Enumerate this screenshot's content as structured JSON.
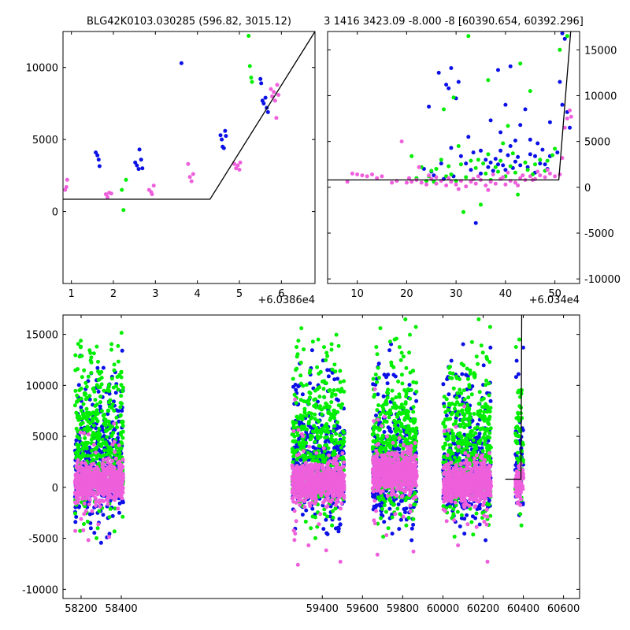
{
  "figure": {
    "title_left": "BLG42K0103.030285 (596.82, 3015.12)",
    "title_right": "3 1416 3423.09 -8.000 -8 [60390.654, 60392.296]",
    "offset_left": "+6.0386e4",
    "offset_right": "+6.034e4"
  },
  "chart_data": [
    {
      "id": "top-left",
      "type": "scatter",
      "title": "BLG42K0103.030285 (596.82, 3015.12)",
      "xlim": [
        0.8,
        6.8
      ],
      "ylim": [
        -5000,
        12500
      ],
      "x_offset_label": "+6.0386e4",
      "x_ticks": [
        1,
        2,
        3,
        4,
        5,
        6
      ],
      "y_ticks": [
        0,
        5000,
        10000
      ],
      "y_axis_side": "left",
      "series": [
        {
          "color": "#0a10e6",
          "points": [
            [
              1.58,
              4100
            ],
            [
              1.62,
              3900
            ],
            [
              1.65,
              3600
            ],
            [
              1.67,
              3150
            ],
            [
              2.52,
              3400
            ],
            [
              2.56,
              3200
            ],
            [
              2.6,
              2950
            ],
            [
              2.62,
              4300
            ],
            [
              2.66,
              3600
            ],
            [
              2.69,
              3000
            ],
            [
              3.62,
              10300
            ],
            [
              4.55,
              5300
            ],
            [
              4.58,
              5000
            ],
            [
              4.6,
              4500
            ],
            [
              4.63,
              4400
            ],
            [
              4.66,
              5600
            ],
            [
              4.68,
              5250
            ],
            [
              5.5,
              9200
            ],
            [
              5.52,
              8900
            ],
            [
              5.55,
              7700
            ],
            [
              5.58,
              7500
            ],
            [
              5.62,
              7900
            ],
            [
              5.65,
              7200
            ],
            [
              5.68,
              6900
            ]
          ]
        },
        {
          "color": "#00ee00",
          "points": [
            [
              2.2,
              1500
            ],
            [
              2.24,
              100
            ],
            [
              2.3,
              2200
            ],
            [
              5.22,
              12200
            ],
            [
              5.25,
              10100
            ],
            [
              5.28,
              9300
            ],
            [
              5.3,
              9000
            ]
          ]
        },
        {
          "color": "#ee5fdc",
          "points": [
            [
              0.85,
              1500
            ],
            [
              0.88,
              1700
            ],
            [
              0.9,
              2200
            ],
            [
              1.82,
              1200
            ],
            [
              1.86,
              1000
            ],
            [
              1.9,
              1300
            ],
            [
              1.95,
              1250
            ],
            [
              2.85,
              1500
            ],
            [
              2.9,
              1350
            ],
            [
              2.92,
              1200
            ],
            [
              2.96,
              1800
            ],
            [
              3.78,
              3300
            ],
            [
              3.82,
              2400
            ],
            [
              3.86,
              2100
            ],
            [
              3.9,
              2600
            ],
            [
              4.88,
              3300
            ],
            [
              4.92,
              3000
            ],
            [
              4.96,
              3200
            ],
            [
              5.0,
              2900
            ],
            [
              5.02,
              3400
            ],
            [
              5.75,
              8500
            ],
            [
              5.78,
              8000
            ],
            [
              5.82,
              8300
            ],
            [
              5.85,
              7700
            ],
            [
              5.88,
              6500
            ],
            [
              5.9,
              8800
            ],
            [
              5.93,
              8100
            ]
          ]
        }
      ],
      "model_line": [
        [
          0.8,
          850
        ],
        [
          4.3,
          850
        ],
        [
          6.8,
          12500
        ]
      ]
    },
    {
      "id": "top-right",
      "type": "scatter",
      "title": "3 1416 3423.09 -8.000 -8 [60390.654, 60392.296]",
      "xlim": [
        4,
        55
      ],
      "ylim": [
        -10500,
        17000
      ],
      "x_offset_label": "+6.034e4",
      "x_ticks": [
        10,
        20,
        30,
        40,
        50
      ],
      "y_ticks": [
        -10000,
        -5000,
        0,
        5000,
        10000,
        15000
      ],
      "y_axis_side": "right",
      "series": [
        {
          "color": "#0a10e6",
          "points": [
            [
              23.5,
              2000
            ],
            [
              24.5,
              8800
            ],
            [
              25.5,
              1300
            ],
            [
              26.5,
              12500
            ],
            [
              27,
              2600
            ],
            [
              28,
              11200
            ],
            [
              28.5,
              10800
            ],
            [
              29,
              13000
            ],
            [
              29.5,
              1200
            ],
            [
              30.5,
              11500
            ],
            [
              31,
              3400
            ],
            [
              32,
              2600
            ],
            [
              33,
              1900
            ],
            [
              34,
              -3900
            ],
            [
              35,
              4000
            ],
            [
              36,
              3000
            ],
            [
              36.5,
              2200
            ],
            [
              37,
              2700
            ],
            [
              37.5,
              1800
            ],
            [
              38,
              3100
            ],
            [
              38.5,
              2500
            ],
            [
              39,
              4000
            ],
            [
              39.5,
              2400
            ],
            [
              40,
              1900
            ],
            [
              40.5,
              3500
            ],
            [
              41,
              4500
            ],
            [
              41.5,
              2100
            ],
            [
              42,
              2800
            ],
            [
              42.5,
              3300
            ],
            [
              43,
              2400
            ],
            [
              44,
              8500
            ],
            [
              45,
              5200
            ],
            [
              46,
              3400
            ],
            [
              47,
              2600
            ],
            [
              47.5,
              4100
            ],
            [
              48,
              2500
            ],
            [
              49,
              7100
            ],
            [
              51,
              11500
            ],
            [
              51.5,
              9000
            ],
            [
              52,
              16200
            ],
            [
              52.5,
              8200
            ],
            [
              53,
              6500
            ],
            [
              27.5,
              900
            ],
            [
              25,
              1700
            ],
            [
              29,
              4300
            ],
            [
              32.5,
              5500
            ],
            [
              37,
              7300
            ],
            [
              38.5,
              12800
            ],
            [
              40,
              9000
            ],
            [
              41,
              13200
            ],
            [
              43,
              6800
            ],
            [
              45,
              3600
            ],
            [
              46.5,
              4800
            ],
            [
              48.5,
              2000
            ],
            [
              50.5,
              3800
            ],
            [
              30,
              9700
            ],
            [
              33.5,
              3800
            ],
            [
              35,
              1500
            ],
            [
              39,
              6000
            ],
            [
              42,
              5100
            ],
            [
              44.5,
              2200
            ],
            [
              46,
              1600
            ],
            [
              49,
              3400
            ],
            [
              51.5,
              16800
            ]
          ]
        },
        {
          "color": "#00ee00",
          "points": [
            [
              21,
              3400
            ],
            [
              22,
              1000
            ],
            [
              23,
              2200
            ],
            [
              24.5,
              1200
            ],
            [
              25,
              1800
            ],
            [
              25.5,
              600
            ],
            [
              26,
              2000
            ],
            [
              27,
              3000
            ],
            [
              27.5,
              8500
            ],
            [
              28,
              1200
            ],
            [
              28.5,
              2300
            ],
            [
              29,
              1400
            ],
            [
              29.5,
              9800
            ],
            [
              30,
              700
            ],
            [
              31,
              2500
            ],
            [
              31.5,
              -2700
            ],
            [
              32,
              1100
            ],
            [
              32.5,
              16500
            ],
            [
              33,
              2900
            ],
            [
              34,
              2100
            ],
            [
              35,
              -1900
            ],
            [
              35.5,
              2600
            ],
            [
              36,
              1500
            ],
            [
              36.5,
              3600
            ],
            [
              37,
              800
            ],
            [
              38,
              2200
            ],
            [
              38.5,
              1700
            ],
            [
              39,
              2900
            ],
            [
              40,
              1200
            ],
            [
              40.5,
              6700
            ],
            [
              41,
              2300
            ],
            [
              42,
              1600
            ],
            [
              42.5,
              -800
            ],
            [
              43,
              13500
            ],
            [
              44,
              2700
            ],
            [
              44.5,
              1900
            ],
            [
              45,
              10500
            ],
            [
              46,
              2500
            ],
            [
              47,
              3000
            ],
            [
              48,
              1800
            ],
            [
              48.5,
              2900
            ],
            [
              49.5,
              3500
            ],
            [
              51,
              15000
            ],
            [
              52.5,
              16500
            ],
            [
              24,
              700
            ],
            [
              30.5,
              4500
            ],
            [
              34.5,
              3000
            ],
            [
              36.5,
              11700
            ],
            [
              39.5,
              4800
            ],
            [
              41.5,
              3700
            ],
            [
              45.5,
              1400
            ],
            [
              50,
              4200
            ]
          ]
        },
        {
          "color": "#ee5fdc",
          "points": [
            [
              8,
              600
            ],
            [
              9,
              1500
            ],
            [
              10,
              1400
            ],
            [
              11,
              1300
            ],
            [
              12,
              1200
            ],
            [
              13,
              1400
            ],
            [
              14,
              1000
            ],
            [
              15,
              1200
            ],
            [
              17,
              500
            ],
            [
              18,
              700
            ],
            [
              19,
              5000
            ],
            [
              20,
              500
            ],
            [
              21,
              600
            ],
            [
              22,
              800
            ],
            [
              23,
              500
            ],
            [
              24,
              300
            ],
            [
              25,
              900
            ],
            [
              26,
              400
            ],
            [
              27,
              700
            ],
            [
              28,
              200
            ],
            [
              29,
              600
            ],
            [
              30,
              300
            ],
            [
              31,
              700
            ],
            [
              32,
              100
            ],
            [
              33,
              600
            ],
            [
              34,
              400
            ],
            [
              35,
              800
            ],
            [
              36,
              200
            ],
            [
              37,
              600
            ],
            [
              38,
              400
            ],
            [
              39,
              900
            ],
            [
              40,
              300
            ],
            [
              41,
              700
            ],
            [
              42,
              500
            ],
            [
              43,
              1000
            ],
            [
              44,
              800
            ],
            [
              45,
              1200
            ],
            [
              46,
              900
            ],
            [
              47,
              1300
            ],
            [
              48,
              1100
            ],
            [
              49,
              1500
            ],
            [
              50,
              1200
            ],
            [
              51,
              1400
            ],
            [
              51.5,
              3200
            ],
            [
              52,
              6500
            ],
            [
              52.5,
              7500
            ],
            [
              53,
              8400
            ],
            [
              53.3,
              7700
            ],
            [
              22.5,
              2200
            ],
            [
              26,
              1100
            ],
            [
              30.5,
              -200
            ],
            [
              33.5,
              900
            ],
            [
              36.5,
              -300
            ],
            [
              39.5,
              1100
            ],
            [
              42.5,
              200
            ],
            [
              45.5,
              800
            ],
            [
              48.5,
              1900
            ],
            [
              20.5,
              1000
            ],
            [
              24.5,
              1300
            ],
            [
              28.5,
              1000
            ],
            [
              34.5,
              1200
            ],
            [
              37.5,
              1400
            ],
            [
              40.5,
              1600
            ],
            [
              43.5,
              1300
            ],
            [
              46.5,
              1700
            ]
          ]
        }
      ],
      "model_line": [
        [
          4,
          800
        ],
        [
          50.8,
          800
        ],
        [
          53.2,
          17000
        ]
      ]
    },
    {
      "id": "bottom",
      "type": "scatter",
      "xlim": [
        58110,
        60680
      ],
      "ylim": [
        -10900,
        16900
      ],
      "x_ticks": [
        58200,
        58400,
        59400,
        59600,
        59800,
        60000,
        60200,
        60400,
        60600
      ],
      "y_ticks": [
        -10000,
        -5000,
        0,
        5000,
        10000,
        15000
      ],
      "y_axis_side": "left",
      "seasons": [
        [
          58170,
          58410
        ],
        [
          59250,
          59510
        ],
        [
          59650,
          59870
        ],
        [
          60000,
          60240
        ],
        [
          60360,
          60400
        ]
      ],
      "series_colors": {
        "blue": "#0a10e6",
        "green": "#00ee00",
        "pink": "#ee5fdc"
      },
      "model_line": [
        [
          60310,
          800
        ],
        [
          60388,
          800
        ],
        [
          60392,
          16900
        ]
      ]
    }
  ]
}
